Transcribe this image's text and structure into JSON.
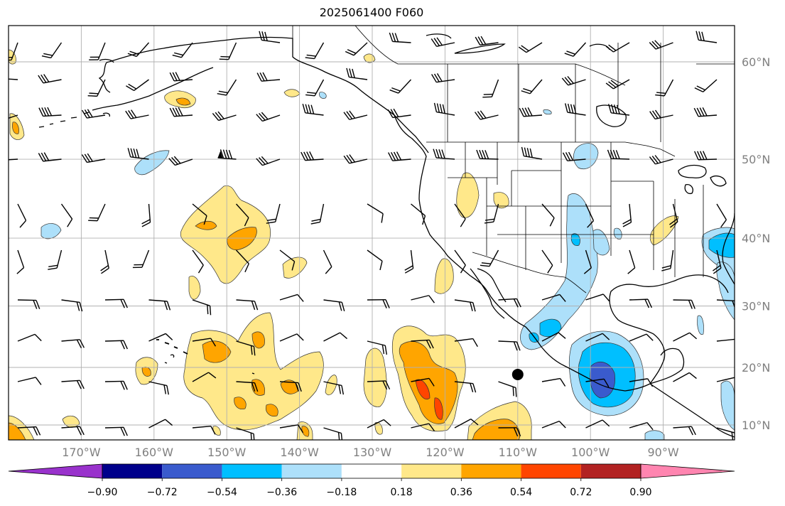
{
  "title": "2025061400 F060",
  "map": {
    "lon_range": [
      -180,
      -80
    ],
    "lat_range": [
      8,
      65
    ],
    "lon_ticks": [
      "170°W",
      "160°W",
      "150°W",
      "140°W",
      "130°W",
      "120°W",
      "110°W",
      "100°W",
      "90°W"
    ],
    "lat_ticks": [
      "10°N",
      "20°N",
      "30°N",
      "40°N",
      "50°N",
      "60°N"
    ],
    "grid": true,
    "marker": {
      "type": "filled-circle",
      "lon": -110,
      "lat": 18.8
    }
  },
  "colorbar": {
    "orientation": "horizontal",
    "extend": "both",
    "levels": [
      "−0.90",
      "−0.72",
      "−0.54",
      "−0.36",
      "−0.18",
      "0.18",
      "0.36",
      "0.54",
      "0.72",
      "0.90"
    ],
    "colors": [
      "#9932CC",
      "#00008B",
      "#3A5BCD",
      "#00BFFF",
      "#ADE0FA",
      "#FFFFFF",
      "#FFE88A",
      "#FFA500",
      "#FF4500",
      "#B22222",
      "#FF85B0"
    ]
  }
}
